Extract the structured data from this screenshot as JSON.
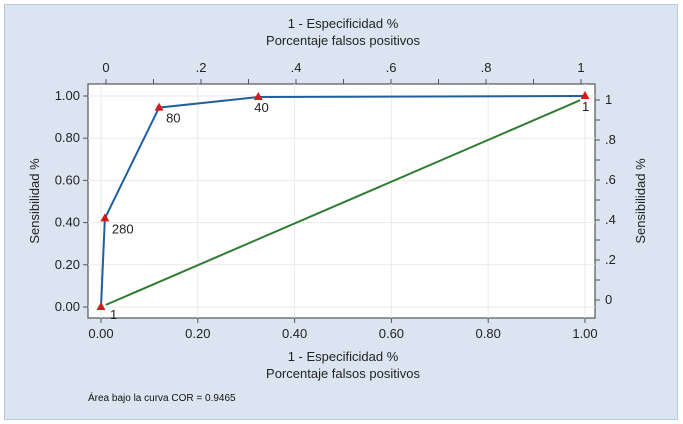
{
  "chart_data": {
    "type": "line",
    "title_top": "1 - Especificidad %",
    "subtitle_top": "Porcentaje falsos positivos",
    "xlabel": "1 - Especificidad %",
    "xlabel2": "Porcentaje falsos positivos",
    "ylabel_left": "Sensibilidad %",
    "ylabel_right": "Sensibilidad %",
    "xlim": [
      0,
      1
    ],
    "ylim": [
      0,
      1
    ],
    "bottom_ticks": [
      "0.00",
      "0.20",
      "0.40",
      "0.60",
      "0.80",
      "1.00"
    ],
    "left_ticks": [
      "0.00",
      "0.20",
      "0.40",
      "0.60",
      "0.80",
      "1.00"
    ],
    "top_ticks": [
      "0",
      ".2",
      ".4",
      ".6",
      ".8",
      "1"
    ],
    "right_ticks": [
      "0",
      ".2",
      ".4",
      ".6",
      ".8",
      "1"
    ],
    "grid": true,
    "series": [
      {
        "color": "#1f5f9e",
        "marker_color": "#d7191c",
        "x": [
          0,
          0.008,
          0.12,
          0.325,
          1
        ],
        "y": [
          0,
          0.42,
          0.945,
          0.995,
          1
        ],
        "point_labels": [
          "1",
          "280",
          "80",
          "40",
          "1"
        ]
      },
      {
        "color": "#2e7d32",
        "x": [
          0.01,
          0.99
        ],
        "y": [
          0.01,
          0.98
        ]
      }
    ],
    "annotation": "Área bajo la curva COR = 0.9465"
  }
}
